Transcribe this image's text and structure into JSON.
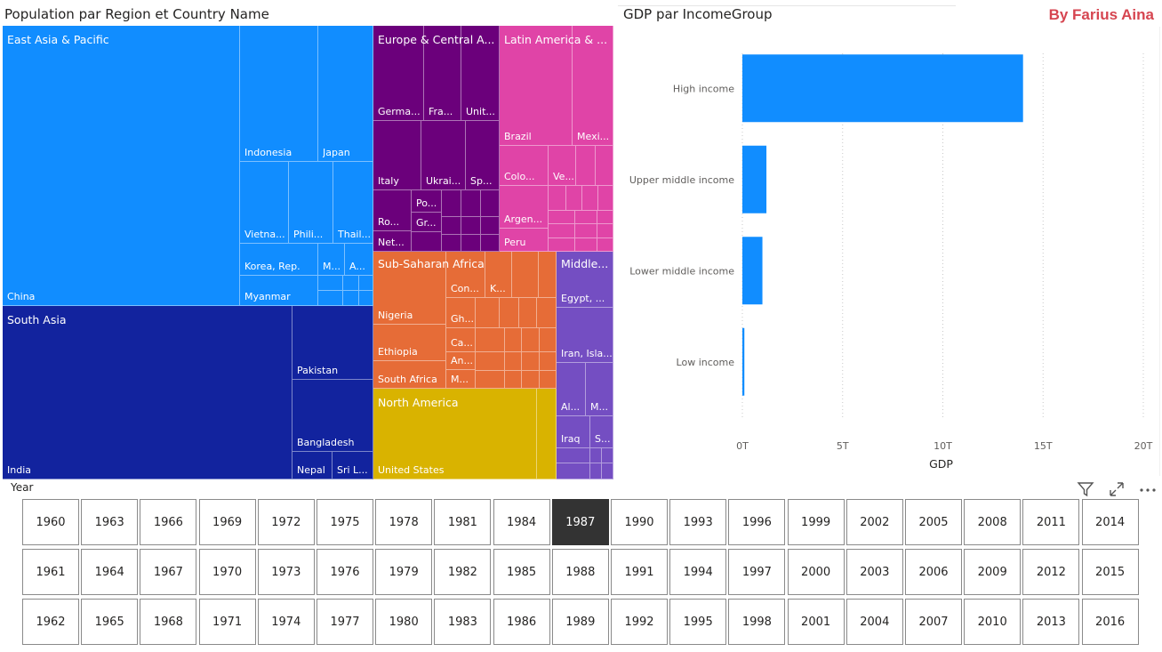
{
  "treemap": {
    "title": "Population par Region et Country Name",
    "colors": {
      "east_asia": "#118dff",
      "south_asia": "#12239e",
      "europe": "#6b007b",
      "latam": "#e044a7",
      "ssa": "#e66c37",
      "na": "#d9b300",
      "mena": "#744ec2"
    },
    "regions": [
      {
        "label": "East Asia & Pacific"
      },
      {
        "label": "Europe & Central A..."
      },
      {
        "label": "Latin America & ..."
      },
      {
        "label": "South Asia"
      },
      {
        "label": "Sub-Saharan Africa"
      },
      {
        "label": "Middle..."
      },
      {
        "label": "North America"
      }
    ],
    "countries": [
      {
        "label": "China"
      },
      {
        "label": "Indonesia"
      },
      {
        "label": "Japan"
      },
      {
        "label": "Vietna..."
      },
      {
        "label": "Phili..."
      },
      {
        "label": "Thail..."
      },
      {
        "label": "Korea, Rep."
      },
      {
        "label": "M..."
      },
      {
        "label": "A..."
      },
      {
        "label": "Myanmar"
      },
      {
        "label": "Germa..."
      },
      {
        "label": "Fra..."
      },
      {
        "label": "Unit..."
      },
      {
        "label": "Italy"
      },
      {
        "label": "Ukrai..."
      },
      {
        "label": "Sp..."
      },
      {
        "label": "Po..."
      },
      {
        "label": "Ro..."
      },
      {
        "label": "Gr..."
      },
      {
        "label": "Net..."
      },
      {
        "label": "Brazil"
      },
      {
        "label": "Mexi..."
      },
      {
        "label": "Colo..."
      },
      {
        "label": "Ve..."
      },
      {
        "label": "Argen..."
      },
      {
        "label": "Peru"
      },
      {
        "label": "India"
      },
      {
        "label": "Pakistan"
      },
      {
        "label": "Bangladesh"
      },
      {
        "label": "Nepal"
      },
      {
        "label": "Sri L..."
      },
      {
        "label": "Nigeria"
      },
      {
        "label": "Con..."
      },
      {
        "label": "K..."
      },
      {
        "label": "Gh..."
      },
      {
        "label": "Ca..."
      },
      {
        "label": "Ethiopia"
      },
      {
        "label": "An..."
      },
      {
        "label": "South Africa"
      },
      {
        "label": "M..."
      },
      {
        "label": "Egypt, ..."
      },
      {
        "label": "Iran, Isla..."
      },
      {
        "label": "Al..."
      },
      {
        "label": "M..."
      },
      {
        "label": "Iraq"
      },
      {
        "label": "S..."
      },
      {
        "label": "United States"
      }
    ]
  },
  "bar": {
    "title": "GDP par IncomeGroup",
    "color": "#118dff"
  },
  "chart_data": {
    "type": "bar",
    "orientation": "horizontal",
    "title": "GDP par IncomeGroup",
    "categories": [
      "High income",
      "Upper middle income",
      "Lower middle income",
      "Low income"
    ],
    "values": [
      14.0,
      1.2,
      1.0,
      0.1
    ],
    "value_unit": "T",
    "xlabel": "GDP",
    "ylabel": "",
    "xlim": [
      0,
      20
    ],
    "xticks": [
      "0T",
      "5T",
      "10T",
      "15T",
      "20T"
    ],
    "grid": true
  },
  "brand": "By Farius Aina",
  "slicer": {
    "title": "Year",
    "selected": "1987",
    "years": [
      "1960",
      "1963",
      "1966",
      "1969",
      "1972",
      "1975",
      "1978",
      "1981",
      "1984",
      "1987",
      "1990",
      "1993",
      "1996",
      "1999",
      "2002",
      "2005",
      "2008",
      "2011",
      "2014",
      "1961",
      "1964",
      "1967",
      "1970",
      "1973",
      "1976",
      "1979",
      "1982",
      "1985",
      "1988",
      "1991",
      "1994",
      "1997",
      "2000",
      "2003",
      "2006",
      "2009",
      "2012",
      "2015",
      "1962",
      "1965",
      "1968",
      "1971",
      "1974",
      "1977",
      "1980",
      "1983",
      "1986",
      "1989",
      "1992",
      "1995",
      "1998",
      "2001",
      "2004",
      "2007",
      "2010",
      "2013",
      "2016"
    ]
  },
  "toolbar": {
    "icons": [
      "filter-icon",
      "focus-mode-icon",
      "more-options-icon"
    ]
  }
}
